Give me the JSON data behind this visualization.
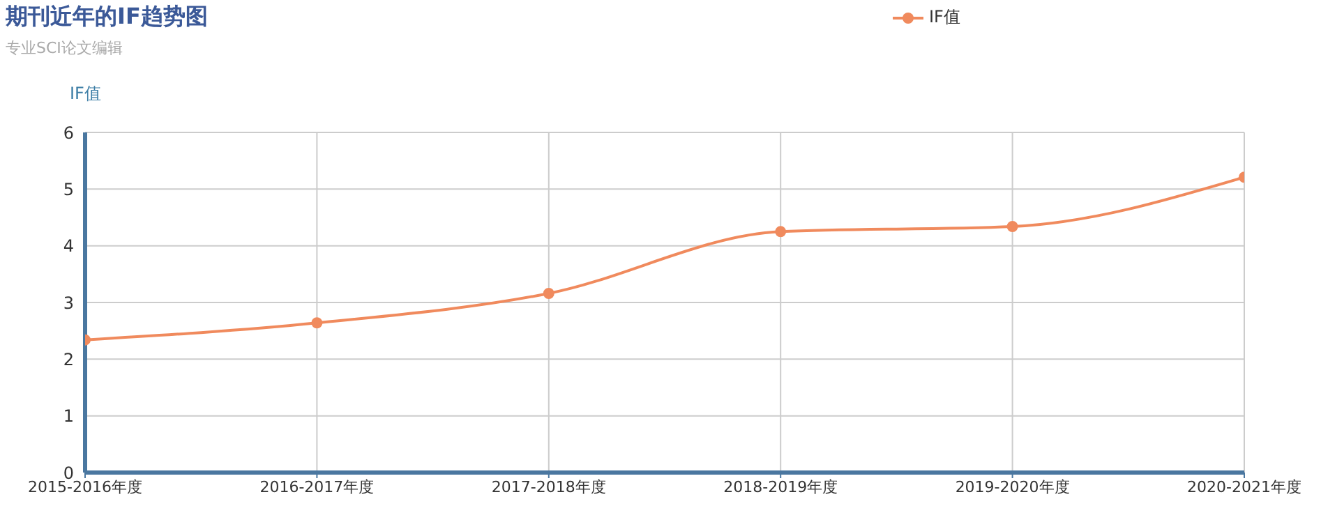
{
  "chart_data": {
    "type": "line",
    "title": "期刊近年的IF趋势图",
    "subtitle": "专业SCI论文编辑",
    "ylabel": "IF值",
    "categories": [
      "2015-2016年度",
      "2016-2017年度",
      "2017-2018年度",
      "2018-2019年度",
      "2019-2020年度",
      "2020-2021年度"
    ],
    "series": [
      {
        "name": "IF值",
        "color": "#f08a5d",
        "values": [
          2.34,
          2.64,
          3.16,
          4.25,
          4.34,
          5.21
        ]
      }
    ],
    "ylim": [
      0,
      6
    ],
    "yticks": [
      0,
      1,
      2,
      3,
      4,
      5,
      6
    ],
    "grid": true,
    "legend": "top right",
    "marker": "circle",
    "line_style": "solid"
  }
}
